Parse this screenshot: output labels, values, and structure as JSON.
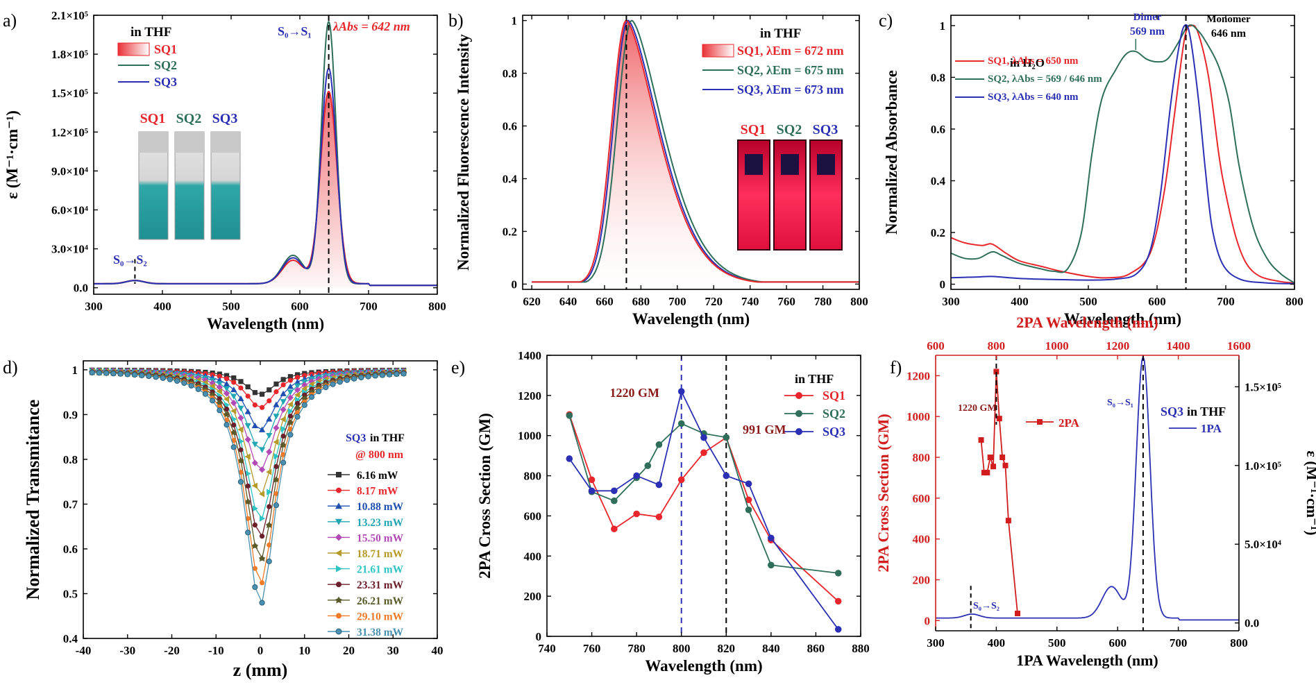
{
  "colors": {
    "red": "#e8262b",
    "green": "#2e6e5a",
    "blue": "#2b2fb4",
    "black": "#1a1a1a",
    "darkred": "#8a1a1a",
    "panel_f_red": "#d11d1d",
    "teal_liquid": "#2fa7a7"
  },
  "chart_data": [
    {
      "panel": "a)",
      "type": "line",
      "xlabel": "Wavelength (nm)",
      "ylabel": "ε (M⁻¹·cm⁻¹)",
      "xlim": [
        300,
        800
      ],
      "ylim": [
        -5000,
        210000
      ],
      "xticks": [
        300,
        400,
        500,
        600,
        700,
        800
      ],
      "yticks": [
        0,
        30000,
        60000,
        90000,
        120000,
        150000,
        180000,
        210000
      ],
      "ytick_labels": [
        "0.0",
        "3.0×10⁴",
        "6.0×10⁴",
        "9.0×10⁴",
        "1.2×10⁵",
        "1.5×10⁵",
        "1.8×10⁵",
        "2.1×10⁵"
      ],
      "legend_title": "in THF",
      "legend": [
        "SQ1",
        "SQ2",
        "SQ3"
      ],
      "vials": [
        "SQ1",
        "SQ2",
        "SQ3"
      ],
      "annotations": [
        "S₀→S₁",
        "λAbs = 642 nm",
        "S₀→S₂"
      ],
      "vlines": [
        642,
        360
      ],
      "series": [
        {
          "name": "SQ1",
          "peak": 642,
          "peak_value": 148000,
          "width": 17,
          "shoulder_value": 18000,
          "base": 3200,
          "fill": true
        },
        {
          "name": "SQ2",
          "peak": 642,
          "peak_value": 202000,
          "width": 15,
          "shoulder_value": 22000,
          "base": 3000
        },
        {
          "name": "SQ3",
          "peak": 642,
          "peak_value": 166000,
          "width": 16,
          "shoulder_value": 20000,
          "base": 3100
        }
      ]
    },
    {
      "panel": "b)",
      "type": "line",
      "xlabel": "Wavelength (nm)",
      "ylabel": "Normalized Fluorescence Intensity",
      "xlim": [
        615,
        800
      ],
      "ylim": [
        -0.02,
        1.02
      ],
      "xticks": [
        620,
        640,
        660,
        680,
        700,
        720,
        740,
        760,
        780,
        800
      ],
      "yticks": [
        0.0,
        0.2,
        0.4,
        0.6,
        0.8,
        1.0
      ],
      "legend_title": "in THF",
      "legend": [
        "SQ1, λEm = 672 nm",
        "SQ2, λEm = 675 nm",
        "SQ3, λEm = 673 nm"
      ],
      "vials": [
        "SQ1",
        "SQ2",
        "SQ3"
      ],
      "vlines": [
        672
      ],
      "series": [
        {
          "name": "SQ1",
          "peak": 672,
          "fill": true
        },
        {
          "name": "SQ2",
          "peak": 675
        },
        {
          "name": "SQ3",
          "peak": 673
        }
      ]
    },
    {
      "panel": "c)",
      "type": "line",
      "xlabel": "Wavelength (nm)",
      "ylabel": "Normalized Absorbance",
      "xlim": [
        300,
        800
      ],
      "ylim": [
        -0.02,
        1.04
      ],
      "xticks": [
        300,
        400,
        500,
        600,
        700,
        800
      ],
      "yticks": [
        0.0,
        0.2,
        0.4,
        0.6,
        0.8,
        1.0
      ],
      "legend_title": "in H₂O",
      "legend": [
        "SQ1, λAbs = 650 nm",
        "SQ2, λAbs = 569 / 646 nm",
        "SQ3, λAbs = 640 nm"
      ],
      "annotations": [
        "Dimer",
        "569 nm",
        "Monomer",
        "646 nm"
      ],
      "vlines": [
        642
      ],
      "series": [
        {
          "name": "SQ1",
          "points": [
            [
              300,
              0.18
            ],
            [
              320,
              0.16
            ],
            [
              345,
              0.15
            ],
            [
              360,
              0.155
            ],
            [
              380,
              0.12
            ],
            [
              400,
              0.09
            ],
            [
              430,
              0.07
            ],
            [
              460,
              0.05
            ],
            [
              500,
              0.03
            ],
            [
              530,
              0.025
            ],
            [
              560,
              0.04
            ],
            [
              590,
              0.12
            ],
            [
              610,
              0.35
            ],
            [
              625,
              0.65
            ],
            [
              640,
              0.95
            ],
            [
              650,
              1.0
            ],
            [
              660,
              0.97
            ],
            [
              675,
              0.8
            ],
            [
              690,
              0.5
            ],
            [
              700,
              0.35
            ],
            [
              715,
              0.18
            ],
            [
              730,
              0.08
            ],
            [
              750,
              0.03
            ],
            [
              780,
              0.01
            ],
            [
              800,
              0.005
            ]
          ]
        },
        {
          "name": "SQ2",
          "points": [
            [
              300,
              0.12
            ],
            [
              320,
              0.1
            ],
            [
              340,
              0.1
            ],
            [
              360,
              0.125
            ],
            [
              375,
              0.11
            ],
            [
              400,
              0.08
            ],
            [
              430,
              0.06
            ],
            [
              450,
              0.05
            ],
            [
              470,
              0.06
            ],
            [
              490,
              0.2
            ],
            [
              505,
              0.5
            ],
            [
              520,
              0.72
            ],
            [
              540,
              0.83
            ],
            [
              555,
              0.89
            ],
            [
              569,
              0.9
            ],
            [
              585,
              0.87
            ],
            [
              600,
              0.86
            ],
            [
              615,
              0.87
            ],
            [
              630,
              0.93
            ],
            [
              646,
              1.0
            ],
            [
              660,
              0.98
            ],
            [
              675,
              0.92
            ],
            [
              690,
              0.84
            ],
            [
              705,
              0.7
            ],
            [
              720,
              0.45
            ],
            [
              740,
              0.22
            ],
            [
              760,
              0.1
            ],
            [
              780,
              0.04
            ],
            [
              800,
              0.005
            ]
          ]
        },
        {
          "name": "SQ3",
          "points": [
            [
              300,
              0.025
            ],
            [
              340,
              0.028
            ],
            [
              360,
              0.03
            ],
            [
              400,
              0.022
            ],
            [
              450,
              0.018
            ],
            [
              500,
              0.016
            ],
            [
              540,
              0.02
            ],
            [
              570,
              0.04
            ],
            [
              590,
              0.13
            ],
            [
              605,
              0.35
            ],
            [
              620,
              0.7
            ],
            [
              632,
              0.92
            ],
            [
              640,
              1.0
            ],
            [
              648,
              0.96
            ],
            [
              660,
              0.72
            ],
            [
              670,
              0.45
            ],
            [
              680,
              0.22
            ],
            [
              695,
              0.08
            ],
            [
              720,
              0.02
            ],
            [
              760,
              0.005
            ],
            [
              800,
              0.002
            ]
          ]
        }
      ]
    },
    {
      "panel": "d)",
      "type": "line",
      "xlabel": "z (mm)",
      "ylabel": "Normalized Transmitance",
      "xlim": [
        -40,
        40
      ],
      "ylim": [
        0.4,
        1.02
      ],
      "xticks": [
        -40,
        -30,
        -20,
        -10,
        0,
        10,
        20,
        30,
        40
      ],
      "yticks": [
        0.4,
        0.5,
        0.6,
        0.7,
        0.8,
        0.9,
        1.0
      ],
      "legend_title": [
        "SQ3",
        " in THF",
        "@ 800 nm"
      ],
      "z_range": [
        -38,
        33
      ],
      "z_step": 1.6,
      "series": [
        {
          "name": "6.16 mW",
          "min": 0.945,
          "color": "#333333",
          "marker": "square"
        },
        {
          "name": "8.17 mW",
          "min": 0.915,
          "color": "#e8262b",
          "marker": "circle"
        },
        {
          "name": "10.88 mW",
          "min": 0.865,
          "color": "#1f50b0",
          "marker": "triangle"
        },
        {
          "name": "13.23 mW",
          "min": 0.82,
          "color": "#22a6b3",
          "marker": "triangle-down"
        },
        {
          "name": "15.50 mW",
          "min": 0.775,
          "color": "#b24ab5",
          "marker": "diamond"
        },
        {
          "name": "18.71 mW",
          "min": 0.72,
          "color": "#b59a2a",
          "marker": "triangle-left"
        },
        {
          "name": "21.61 mW",
          "min": 0.665,
          "color": "#2ec4c4",
          "marker": "triangle-right"
        },
        {
          "name": "23.31 mW",
          "min": 0.625,
          "color": "#6b1f2a",
          "marker": "hexagon"
        },
        {
          "name": "26.21 mW",
          "min": 0.575,
          "color": "#5a5a2a",
          "marker": "star"
        },
        {
          "name": "29.10 mW",
          "min": 0.52,
          "color": "#f07a28",
          "marker": "pentagon"
        },
        {
          "name": "31.38 mW",
          "min": 0.475,
          "color": "#4a90b0",
          "marker": "circle-open"
        }
      ]
    },
    {
      "panel": "e)",
      "type": "line",
      "xlabel": "Wavelength (nm)",
      "ylabel": "2PA Cross Section (GM)",
      "xlim": [
        740,
        880
      ],
      "ylim": [
        0,
        1400
      ],
      "xticks": [
        740,
        760,
        780,
        800,
        820,
        840,
        860,
        880
      ],
      "yticks": [
        0,
        200,
        400,
        600,
        800,
        1000,
        1200,
        1400
      ],
      "legend_title": "in THF",
      "legend": [
        "SQ1",
        "SQ2",
        "SQ3"
      ],
      "annotations": [
        "1220 GM",
        "991 GM"
      ],
      "vlines": [
        800,
        820
      ],
      "series": [
        {
          "name": "SQ1",
          "points": [
            [
              750,
              1105
            ],
            [
              760,
              780
            ],
            [
              770,
              535
            ],
            [
              780,
              610
            ],
            [
              790,
              595
            ],
            [
              800,
              780
            ],
            [
              810,
              915
            ],
            [
              820,
              990
            ],
            [
              830,
              680
            ],
            [
              840,
              480
            ],
            [
              870,
              175
            ]
          ]
        },
        {
          "name": "SQ2",
          "points": [
            [
              750,
              1100
            ],
            [
              760,
              720
            ],
            [
              770,
              675
            ],
            [
              780,
              790
            ],
            [
              785,
              850
            ],
            [
              790,
              955
            ],
            [
              800,
              1060
            ],
            [
              810,
              1010
            ],
            [
              820,
              991
            ],
            [
              830,
              630
            ],
            [
              840,
              355
            ],
            [
              870,
              315
            ]
          ]
        },
        {
          "name": "SQ3",
          "points": [
            [
              750,
              885
            ],
            [
              760,
              725
            ],
            [
              770,
              725
            ],
            [
              780,
              800
            ],
            [
              790,
              755
            ],
            [
              800,
              1220
            ],
            [
              810,
              990
            ],
            [
              820,
              800
            ],
            [
              830,
              760
            ],
            [
              840,
              490
            ],
            [
              870,
              35
            ]
          ]
        }
      ]
    },
    {
      "panel": "f)",
      "type": "line",
      "xlabel": "1PA Wavelength (nm)",
      "x2label": "2PA Wavelength (nm)",
      "ylabel": "2PA Cross Section (GM)",
      "y2label": "ε (M⁻¹·cm⁻¹)",
      "xlim": [
        300,
        800
      ],
      "x2lim": [
        600,
        1600
      ],
      "ylim": [
        -50,
        1300
      ],
      "y2lim": [
        -5000,
        170000
      ],
      "xticks": [
        300,
        400,
        500,
        600,
        700,
        800
      ],
      "x2ticks": [
        600,
        800,
        1000,
        1200,
        1400,
        1600
      ],
      "yticks": [
        0,
        200,
        400,
        600,
        800,
        1000,
        1200
      ],
      "y2ticks": [
        0,
        50000,
        100000,
        150000
      ],
      "y2tick_labels": [
        "0.0",
        "5.0×10⁴",
        "1.0×10⁵",
        "1.5×10⁵"
      ],
      "legend_title": [
        "SQ3",
        " in THF"
      ],
      "legend": [
        "2PA",
        "1PA"
      ],
      "annotations": [
        "1220 GM",
        "S₀→S₁",
        "S₀→S₂"
      ],
      "vlines": [
        400,
        642,
        358
      ],
      "series": [
        {
          "name": "2PA",
          "axis": "x2/y",
          "points": [
            [
              750,
              885
            ],
            [
              760,
              725
            ],
            [
              770,
              725
            ],
            [
              780,
              800
            ],
            [
              790,
              755
            ],
            [
              800,
              1220
            ],
            [
              810,
              990
            ],
            [
              820,
              800
            ],
            [
              830,
              760
            ],
            [
              840,
              490
            ],
            [
              870,
              35
            ]
          ]
        },
        {
          "name": "1PA",
          "axis": "x/y2",
          "peak": 642,
          "peak_value": 166000,
          "width": 16,
          "shoulder_value": 20000,
          "base": 3100
        }
      ]
    }
  ]
}
